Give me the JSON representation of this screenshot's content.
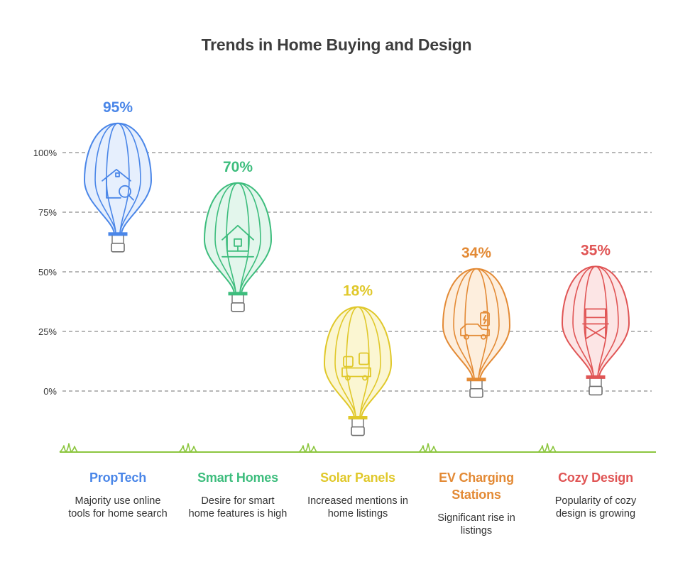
{
  "chart_data": {
    "type": "bar",
    "title": "Trends in Home Buying and Design",
    "yticks": [
      "0%",
      "25%",
      "50%",
      "75%",
      "100%"
    ],
    "ylim": [
      0,
      100
    ],
    "grid": true,
    "legend": "none",
    "categories": [
      {
        "name": "PropTech",
        "value": 95,
        "value_label": "95%",
        "description": "Majority use online tools for home search",
        "color": "#4a86e8",
        "fill": "#e6effd",
        "icon": "house-search-icon"
      },
      {
        "name": "Smart Homes",
        "value": 70,
        "value_label": "70%",
        "description": "Desire for smart home features is high",
        "color": "#3dbd7d",
        "fill": "#e3f6ec",
        "icon": "smart-house-icon"
      },
      {
        "name": "Solar Panels",
        "value": 18,
        "value_label": "18%",
        "description": "Increased mentions in home listings",
        "color": "#e0c82a",
        "fill": "#fbf6d2",
        "icon": "solar-van-icon"
      },
      {
        "name": "EV Charging Stations",
        "value": 34,
        "value_label": "34%",
        "description": "Significant rise in listings",
        "color": "#e38a35",
        "fill": "#fdeedd",
        "icon": "ev-car-battery-icon"
      },
      {
        "name": "Cozy Design",
        "value": 35,
        "value_label": "35%",
        "description": "Popularity of cozy design is growing",
        "color": "#e05555",
        "fill": "#fce5e5",
        "icon": "chair-icon"
      }
    ]
  }
}
